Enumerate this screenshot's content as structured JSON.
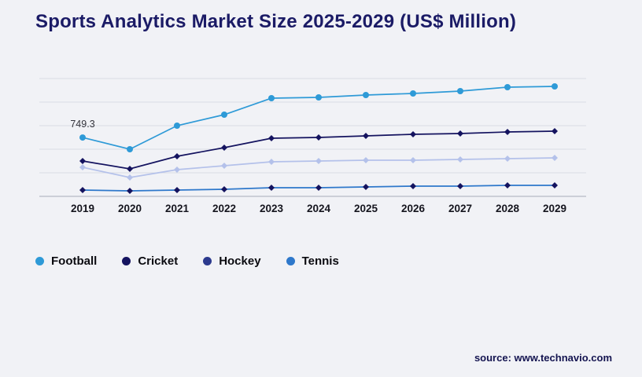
{
  "page": {
    "title": "Sports Analytics Market Size 2025-2029 (US$ Million)",
    "source_text": "source: www.technavio.com"
  },
  "chart_data": {
    "type": "line",
    "title": "Sports Analytics Market Size 2025-2029 (US$ Million)",
    "x": [
      "2019",
      "2020",
      "2021",
      "2022",
      "2023",
      "2024",
      "2025",
      "2026",
      "2027",
      "2028",
      "2029"
    ],
    "series": [
      {
        "name": "Football",
        "color": "#2e9ad7",
        "marker": "circle",
        "values": [
          749.3,
          600,
          900,
          1040,
          1250,
          1260,
          1290,
          1310,
          1340,
          1390,
          1400
        ]
      },
      {
        "name": "Cricket",
        "color": "#14135f",
        "marker": "diamond",
        "values": [
          450,
          350,
          510,
          620,
          740,
          750,
          770,
          790,
          800,
          820,
          830
        ]
      },
      {
        "name": "Hockey",
        "color": "#b4c1ea",
        "legend_color": "#2c3a8e",
        "marker": "diamond",
        "values": [
          370,
          240,
          340,
          390,
          440,
          450,
          460,
          460,
          470,
          480,
          490
        ]
      },
      {
        "name": "Tennis",
        "color": "#2e78cb",
        "marker_color": "#14135f",
        "marker": "diamond",
        "values": [
          80,
          70,
          80,
          90,
          110,
          110,
          120,
          130,
          130,
          140,
          140
        ]
      }
    ],
    "annotation": {
      "text": "749.3",
      "series_index": 0,
      "point_index": 0
    },
    "ylim": [
      0,
      1500
    ],
    "grid": true,
    "legend_position": "bottom",
    "colors": {
      "background": "#f1f2f6",
      "gridline": "#d9dce4",
      "axis_line": "#a7acb8",
      "title": "#1b1b66"
    }
  }
}
